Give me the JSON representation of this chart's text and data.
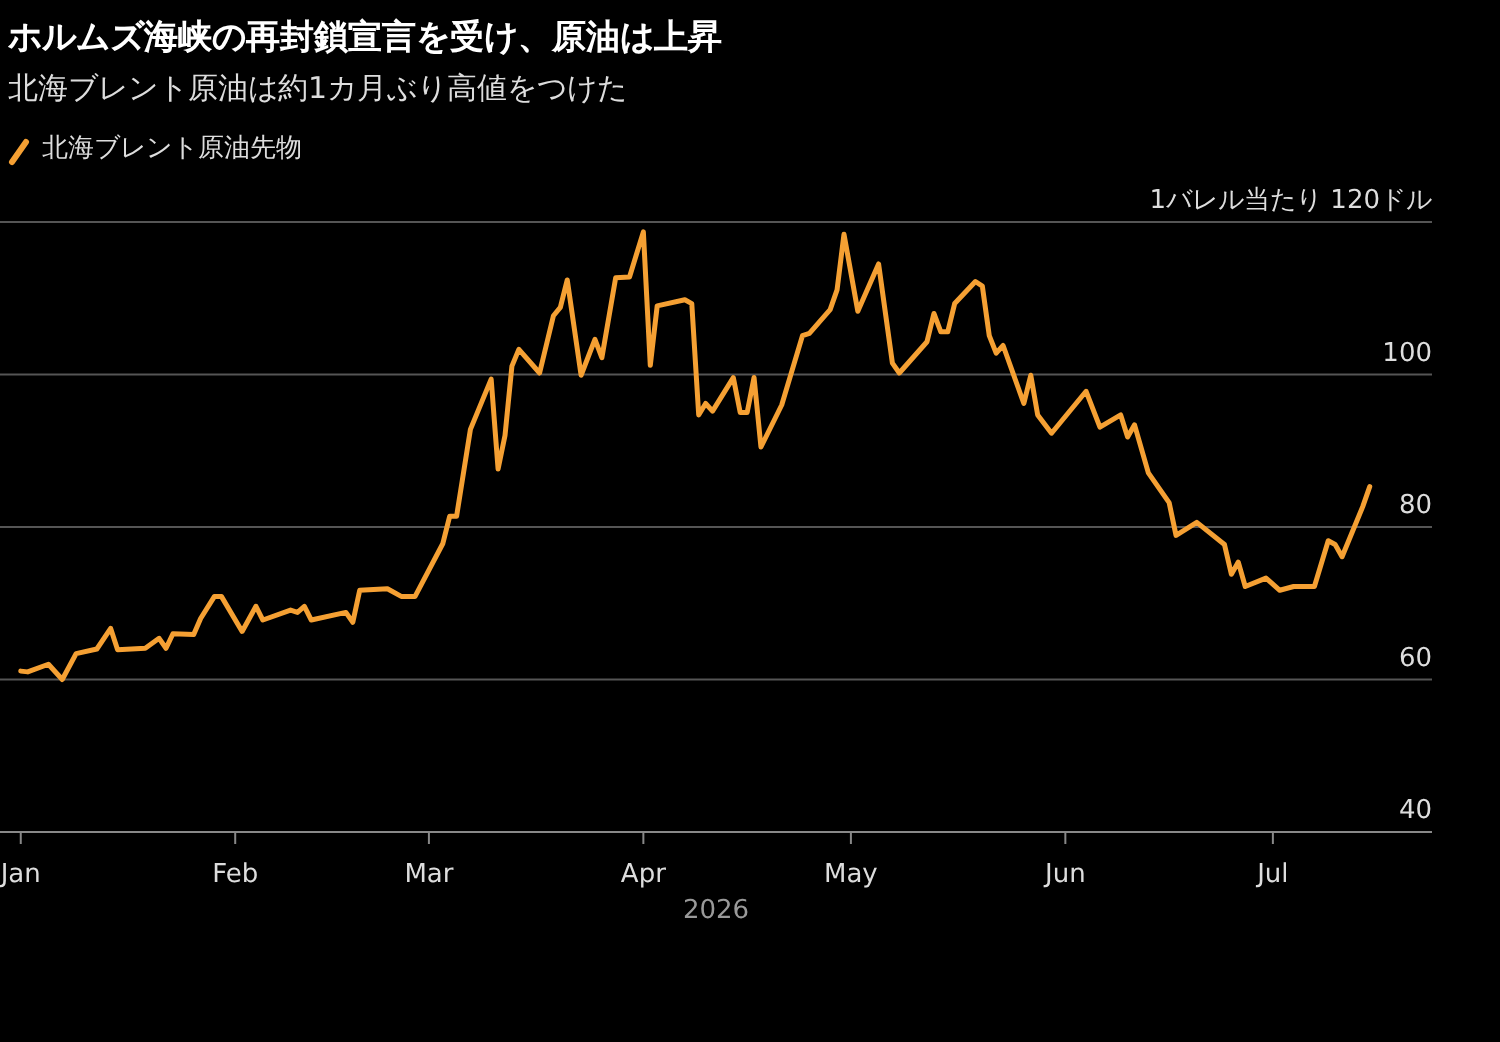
{
  "chart_data": {
    "type": "line",
    "title": "ホルムズ海峡の再封鎖宣言を受け、原油は上昇",
    "subtitle": "北海ブレント原油は約1カ月ぶり高値をつけた",
    "xlabel": "2026",
    "legend": "top left",
    "grid": "y",
    "marker": "none",
    "line_style": "solid",
    "xlim": [
      "2025-12-29",
      "2026-07-24"
    ],
    "xticks": [
      {
        "value": "2026-01-01",
        "label": "Jan"
      },
      {
        "value": "2026-02-01",
        "label": "Feb"
      },
      {
        "value": "2026-03-01",
        "label": "Mar"
      },
      {
        "value": "2026-04-01",
        "label": "Apr"
      },
      {
        "value": "2026-05-01",
        "label": "May"
      },
      {
        "value": "2026-06-01",
        "label": "Jun"
      },
      {
        "value": "2026-07-01",
        "label": "Jul"
      }
    ],
    "ylim": [
      40,
      120
    ],
    "yticks": [
      40,
      60,
      80,
      100,
      {
        "value": 120,
        "label": "1バレル当たり  120ドル"
      }
    ],
    "x": [
      "2026-01-01",
      "2026-01-02",
      "2026-01-05",
      "2026-01-07",
      "2026-01-09",
      "2026-01-12",
      "2026-01-14",
      "2026-01-15",
      "2026-01-19",
      "2026-01-21",
      "2026-01-22",
      "2026-01-23",
      "2026-01-26",
      "2026-01-27",
      "2026-01-29",
      "2026-01-30",
      "2026-02-02",
      "2026-02-04",
      "2026-02-05",
      "2026-02-09",
      "2026-02-10",
      "2026-02-11",
      "2026-02-12",
      "2026-02-17",
      "2026-02-18",
      "2026-02-19",
      "2026-02-23",
      "2026-02-25",
      "2026-02-27",
      "2026-03-03",
      "2026-03-04",
      "2026-03-05",
      "2026-03-07",
      "2026-03-10",
      "2026-03-11",
      "2026-03-12",
      "2026-03-13",
      "2026-03-14",
      "2026-03-17",
      "2026-03-19",
      "2026-03-20",
      "2026-03-21",
      "2026-03-23",
      "2026-03-25",
      "2026-03-26",
      "2026-03-28",
      "2026-03-30",
      "2026-04-01",
      "2026-04-02",
      "2026-04-03",
      "2026-04-07",
      "2026-04-08",
      "2026-04-09",
      "2026-04-10",
      "2026-04-11",
      "2026-04-14",
      "2026-04-15",
      "2026-04-16",
      "2026-04-17",
      "2026-04-18",
      "2026-04-21",
      "2026-04-24",
      "2026-04-25",
      "2026-04-28",
      "2026-04-29",
      "2026-04-30",
      "2026-05-02",
      "2026-05-05",
      "2026-05-07",
      "2026-05-08",
      "2026-05-12",
      "2026-05-13",
      "2026-05-14",
      "2026-05-15",
      "2026-05-16",
      "2026-05-19",
      "2026-05-20",
      "2026-05-21",
      "2026-05-22",
      "2026-05-23",
      "2026-05-26",
      "2026-05-27",
      "2026-05-28",
      "2026-05-30",
      "2026-06-04",
      "2026-06-06",
      "2026-06-09",
      "2026-06-10",
      "2026-06-11",
      "2026-06-13",
      "2026-06-16",
      "2026-06-17",
      "2026-06-20",
      "2026-06-24",
      "2026-06-25",
      "2026-06-26",
      "2026-06-27",
      "2026-06-30",
      "2026-07-02",
      "2026-07-04",
      "2026-07-07",
      "2026-07-09",
      "2026-07-10",
      "2026-07-11",
      "2026-07-14",
      "2026-07-15"
    ],
    "series": [
      {
        "name": "北海ブレント原油先物",
        "color": "#f5a033",
        "values": [
          61.1,
          61.0,
          62.0,
          60.0,
          63.4,
          64.0,
          66.7,
          63.9,
          64.1,
          65.4,
          64.1,
          66.0,
          65.9,
          68.0,
          70.9,
          70.9,
          66.3,
          69.6,
          67.8,
          69.1,
          68.8,
          69.6,
          67.8,
          68.8,
          67.5,
          71.7,
          71.9,
          70.9,
          70.9,
          77.8,
          81.4,
          81.4,
          92.8,
          99.4,
          87.6,
          92.0,
          101.1,
          103.3,
          100.2,
          107.7,
          108.8,
          112.4,
          99.9,
          104.6,
          102.2,
          112.7,
          112.8,
          118.7,
          101.2,
          109.0,
          109.8,
          109.3,
          94.7,
          96.2,
          95.2,
          99.6,
          95.0,
          95.0,
          99.6,
          90.5,
          96.0,
          105.1,
          105.4,
          108.5,
          111.1,
          118.4,
          108.3,
          114.5,
          101.5,
          100.2,
          104.3,
          108.0,
          105.6,
          105.6,
          109.3,
          112.2,
          111.6,
          105.1,
          102.8,
          103.8,
          96.2,
          99.9,
          94.7,
          92.3,
          97.8,
          93.1,
          94.7,
          91.8,
          93.4,
          87.1,
          83.2,
          78.9,
          80.6,
          77.7,
          73.8,
          75.4,
          72.2,
          73.3,
          71.7,
          72.2,
          72.2,
          78.2,
          77.7,
          76.1,
          82.7,
          85.3
        ]
      }
    ]
  }
}
